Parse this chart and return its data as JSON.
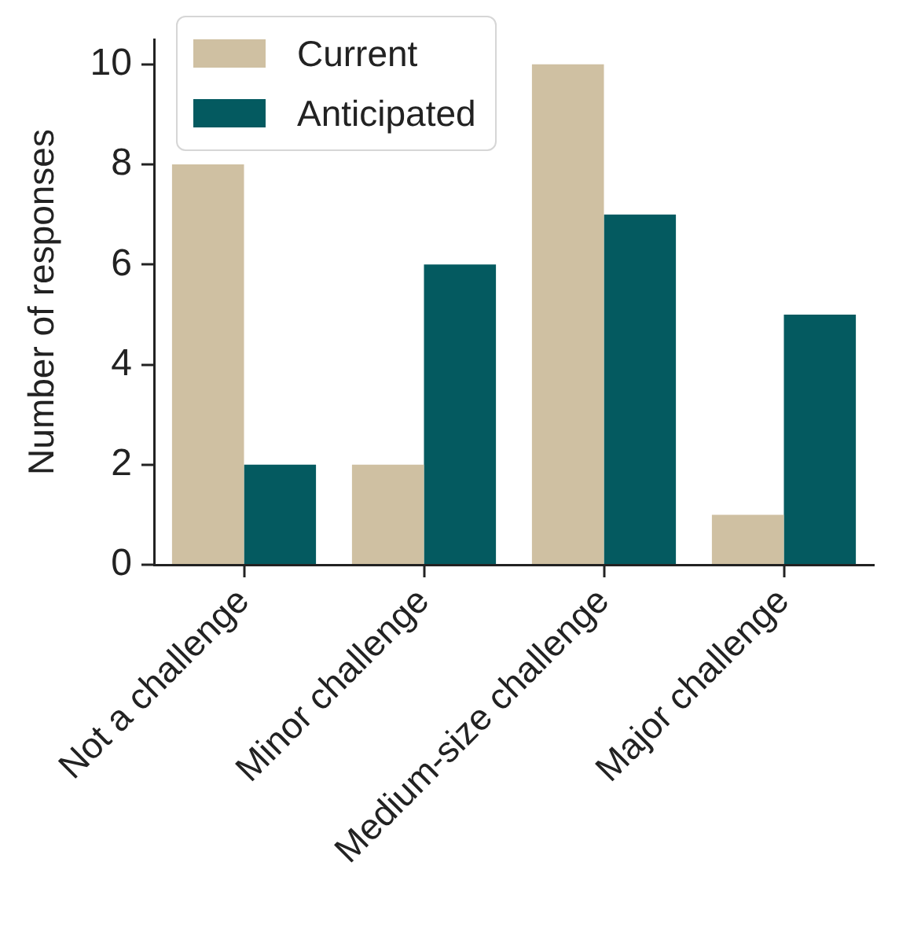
{
  "chart_data": {
    "type": "bar",
    "ylabel": "Number of responses",
    "categories": [
      "Not a challenge",
      "Minor challenge",
      "Medium-size challenge",
      "Major challenge"
    ],
    "series": [
      {
        "name": "Current",
        "color": "#cfc0a2",
        "values": [
          8,
          2,
          10,
          1
        ]
      },
      {
        "name": "Anticipated",
        "color": "#045a60",
        "values": [
          2,
          6,
          7,
          5
        ]
      }
    ],
    "ylim": [
      0,
      10.5
    ],
    "yticks": [
      0,
      2,
      4,
      6,
      8,
      10
    ],
    "legend": "top left"
  }
}
